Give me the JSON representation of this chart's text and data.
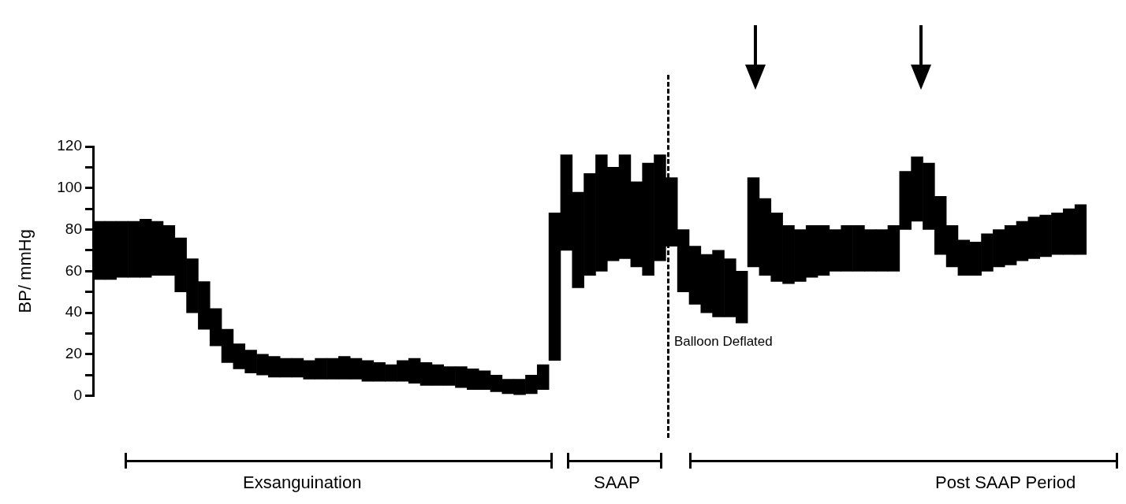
{
  "chart_data": {
    "type": "bar",
    "ylabel": "BP/ mmHg",
    "color": "#000000",
    "ylim": [
      0,
      120
    ],
    "yticks": [
      0,
      {
        "value": 10,
        "label": null
      },
      20,
      {
        "value": 30,
        "label": null
      },
      40,
      {
        "value": 50,
        "label": null
      },
      60,
      {
        "value": 70,
        "label": null
      },
      80,
      {
        "value": 90,
        "label": null
      },
      100,
      {
        "value": 110,
        "label": null
      },
      120
    ],
    "categories": [
      null,
      null,
      null,
      null,
      null,
      null,
      null,
      null,
      null,
      null,
      null,
      null,
      null,
      null,
      null,
      null,
      null,
      null,
      null,
      null,
      null,
      null,
      null,
      null,
      null,
      null,
      null,
      null,
      null,
      null,
      null,
      null,
      null,
      null,
      null,
      null,
      null,
      null,
      null,
      null,
      null,
      null,
      null,
      null,
      null,
      null,
      null,
      null,
      null,
      null,
      null,
      null,
      null,
      null,
      null,
      null,
      null,
      null,
      null,
      null,
      null,
      null,
      null,
      null,
      null,
      null,
      null,
      null,
      null,
      null,
      null,
      null,
      null,
      null,
      null,
      null,
      null,
      null,
      null,
      null,
      null,
      null,
      null,
      null,
      null
    ],
    "base": [
      56,
      56,
      57,
      57,
      57,
      58,
      58,
      50,
      40,
      32,
      24,
      16,
      13,
      11,
      10,
      9,
      9,
      9,
      8,
      8,
      8,
      8,
      8,
      7,
      7,
      7,
      7,
      6,
      5,
      5,
      5,
      4,
      3,
      3,
      2,
      1,
      0,
      1,
      3,
      17,
      70,
      52,
      58,
      60,
      65,
      66,
      62,
      58,
      65,
      72,
      50,
      44,
      40,
      38,
      38,
      35,
      62,
      58,
      55,
      54,
      55,
      57,
      58,
      60,
      60,
      60,
      60,
      60,
      60,
      80,
      84,
      80,
      68,
      62,
      58,
      58,
      60,
      62,
      63,
      65,
      66,
      67,
      68,
      68,
      68
    ],
    "values": [
      28,
      28,
      27,
      27,
      28,
      26,
      24,
      26,
      26,
      23,
      18,
      16,
      12,
      11,
      10,
      10,
      9,
      9,
      9,
      10,
      10,
      11,
      10,
      10,
      9,
      8,
      10,
      12,
      11,
      10,
      9,
      10,
      10,
      9,
      8,
      7,
      8,
      9,
      12,
      71,
      46,
      46,
      49,
      56,
      45,
      50,
      41,
      54,
      51,
      33,
      30,
      28,
      28,
      32,
      28,
      25,
      43,
      37,
      33,
      28,
      25,
      25,
      24,
      20,
      22,
      22,
      20,
      20,
      22,
      28,
      31,
      32,
      28,
      20,
      17,
      16,
      18,
      18,
      19,
      19,
      20,
      20,
      20,
      22,
      24
    ],
    "annotations": [
      "Balloon Deflated",
      "Exsanguination",
      "SAAP",
      "Post SAAP Period"
    ]
  }
}
